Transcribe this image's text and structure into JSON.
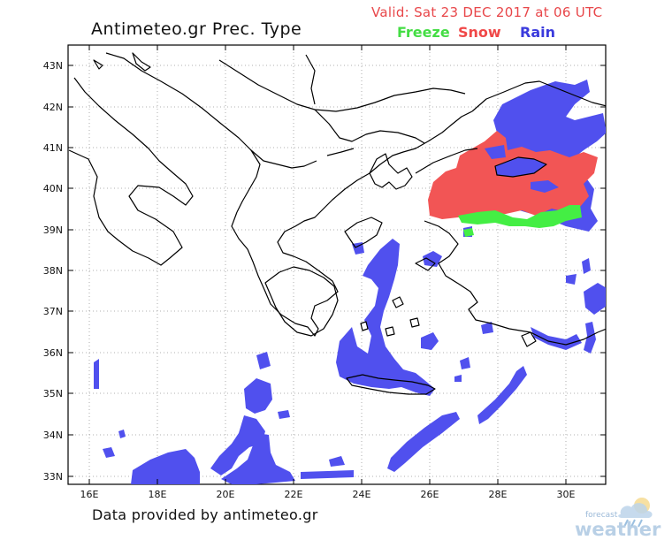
{
  "header": {
    "title": "Antimeteo.gr  Prec. Type",
    "valid": "Valid: Sat 23 DEC 2017 at 06 UTC"
  },
  "legend": {
    "freeze": "Freeze",
    "snow": "Snow",
    "rain": "Rain",
    "colors": {
      "freeze": "#44ee44",
      "snow": "#f25555",
      "rain": "#5050ee"
    }
  },
  "axes": {
    "lat_labels": [
      "43N",
      "42N",
      "41N",
      "40N",
      "39N",
      "38N",
      "37N",
      "36N",
      "35N",
      "34N",
      "33N"
    ],
    "lon_labels": [
      "16E",
      "18E",
      "20E",
      "22E",
      "24E",
      "26E",
      "28E",
      "30E"
    ]
  },
  "footer": {
    "credit": "Data provided by antimeteo.gr",
    "logo_small": "forecast",
    "logo_big": "weather"
  }
}
